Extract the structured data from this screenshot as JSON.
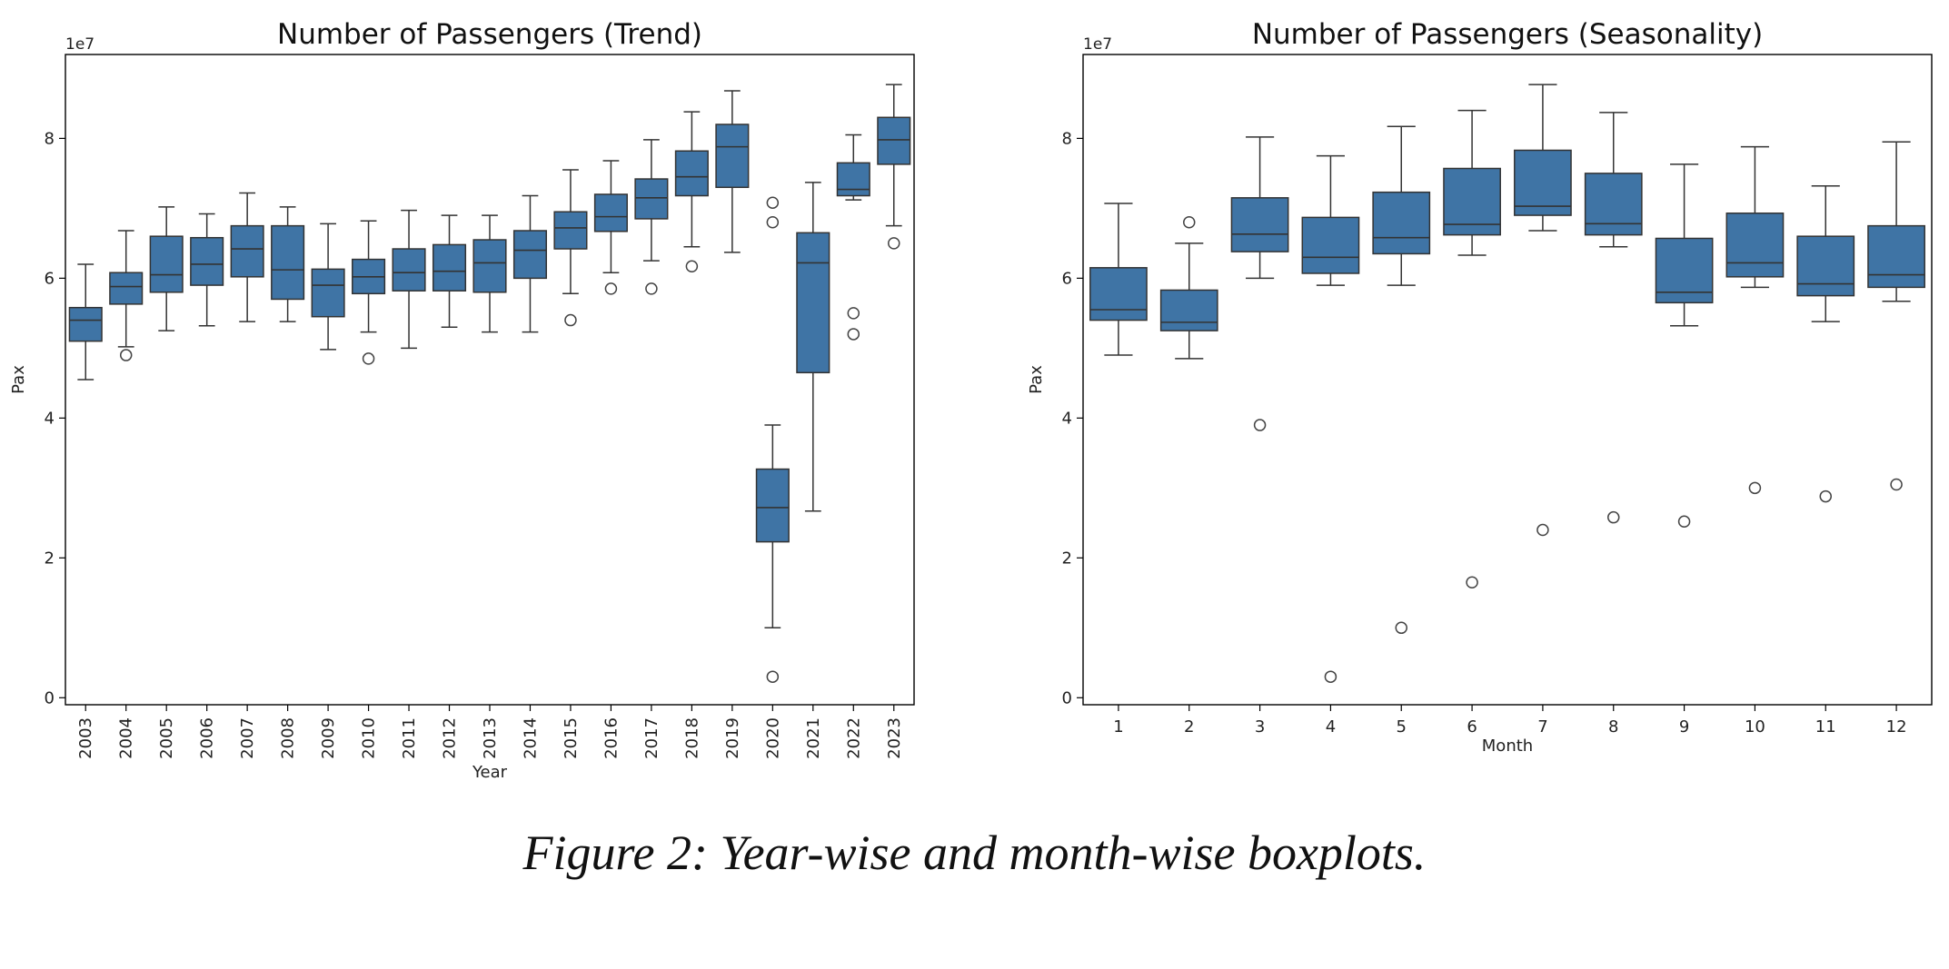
{
  "caption": "Figure 2: Year-wise and month-wise boxplots.",
  "colors": {
    "box_fill": "#3f74a5",
    "line": "#333333",
    "axes": "#000000"
  },
  "chart_data": [
    {
      "type": "box",
      "title": "Number of Passengers (Trend)",
      "xlabel": "Year",
      "ylabel": "Pax",
      "y_offset_label": "1e7",
      "ylim": [
        -0.1,
        9.2
      ],
      "yticks": [
        0,
        2,
        4,
        6,
        8
      ],
      "x_tick_rotation": "vertical",
      "grid": false,
      "categories": [
        "2003",
        "2004",
        "2005",
        "2006",
        "2007",
        "2008",
        "2009",
        "2010",
        "2011",
        "2012",
        "2013",
        "2014",
        "2015",
        "2016",
        "2017",
        "2018",
        "2019",
        "2020",
        "2021",
        "2022",
        "2023"
      ],
      "boxes": [
        {
          "whislo": 4.55,
          "q1": 5.1,
          "med": 5.4,
          "q3": 5.58,
          "whishi": 6.2,
          "fliers": []
        },
        {
          "whislo": 5.02,
          "q1": 5.63,
          "med": 5.88,
          "q3": 6.08,
          "whishi": 6.68,
          "fliers": [
            4.9
          ]
        },
        {
          "whislo": 5.25,
          "q1": 5.8,
          "med": 6.05,
          "q3": 6.6,
          "whishi": 7.02,
          "fliers": []
        },
        {
          "whislo": 5.32,
          "q1": 5.9,
          "med": 6.2,
          "q3": 6.58,
          "whishi": 6.92,
          "fliers": []
        },
        {
          "whislo": 5.38,
          "q1": 6.02,
          "med": 6.42,
          "q3": 6.75,
          "whishi": 7.22,
          "fliers": []
        },
        {
          "whislo": 5.38,
          "q1": 5.7,
          "med": 6.12,
          "q3": 6.75,
          "whishi": 7.02,
          "fliers": []
        },
        {
          "whislo": 4.98,
          "q1": 5.45,
          "med": 5.9,
          "q3": 6.13,
          "whishi": 6.78,
          "fliers": []
        },
        {
          "whislo": 5.23,
          "q1": 5.78,
          "med": 6.02,
          "q3": 6.27,
          "whishi": 6.82,
          "fliers": [
            4.85
          ]
        },
        {
          "whislo": 5.0,
          "q1": 5.82,
          "med": 6.08,
          "q3": 6.42,
          "whishi": 6.97,
          "fliers": []
        },
        {
          "whislo": 5.3,
          "q1": 5.82,
          "med": 6.1,
          "q3": 6.48,
          "whishi": 6.9,
          "fliers": []
        },
        {
          "whislo": 5.23,
          "q1": 5.8,
          "med": 6.22,
          "q3": 6.55,
          "whishi": 6.9,
          "fliers": []
        },
        {
          "whislo": 5.23,
          "q1": 6.0,
          "med": 6.4,
          "q3": 6.68,
          "whishi": 7.18,
          "fliers": []
        },
        {
          "whislo": 5.78,
          "q1": 6.42,
          "med": 6.72,
          "q3": 6.95,
          "whishi": 7.55,
          "fliers": [
            5.4
          ]
        },
        {
          "whislo": 6.08,
          "q1": 6.67,
          "med": 6.88,
          "q3": 7.2,
          "whishi": 7.68,
          "fliers": [
            5.85
          ]
        },
        {
          "whislo": 6.25,
          "q1": 6.85,
          "med": 7.15,
          "q3": 7.42,
          "whishi": 7.98,
          "fliers": [
            5.85
          ]
        },
        {
          "whislo": 6.45,
          "q1": 7.18,
          "med": 7.45,
          "q3": 7.82,
          "whishi": 8.38,
          "fliers": [
            6.17
          ]
        },
        {
          "whislo": 6.37,
          "q1": 7.3,
          "med": 7.88,
          "q3": 8.2,
          "whishi": 8.68,
          "fliers": []
        },
        {
          "whislo": 1.0,
          "q1": 2.23,
          "med": 2.72,
          "q3": 3.27,
          "whishi": 3.9,
          "fliers": [
            0.3,
            6.8,
            7.08
          ]
        },
        {
          "whislo": 2.67,
          "q1": 4.65,
          "med": 6.22,
          "q3": 6.65,
          "whishi": 7.37,
          "fliers": []
        },
        {
          "whislo": 7.12,
          "q1": 7.18,
          "med": 7.27,
          "q3": 7.65,
          "whishi": 8.05,
          "fliers": [
            5.2,
            5.5
          ]
        },
        {
          "whislo": 6.75,
          "q1": 7.63,
          "med": 7.98,
          "q3": 8.3,
          "whishi": 8.77,
          "fliers": [
            6.5
          ]
        }
      ]
    },
    {
      "type": "box",
      "title": "Number of Passengers (Seasonality)",
      "xlabel": "Month",
      "ylabel": "Pax",
      "y_offset_label": "1e7",
      "ylim": [
        -0.1,
        9.2
      ],
      "yticks": [
        0,
        2,
        4,
        6,
        8
      ],
      "grid": false,
      "categories": [
        "1",
        "2",
        "3",
        "4",
        "5",
        "6",
        "7",
        "8",
        "9",
        "10",
        "11",
        "12"
      ],
      "boxes": [
        {
          "whislo": 4.9,
          "q1": 5.4,
          "med": 5.55,
          "q3": 6.15,
          "whishi": 7.07,
          "fliers": []
        },
        {
          "whislo": 4.85,
          "q1": 5.25,
          "med": 5.37,
          "q3": 5.83,
          "whishi": 6.5,
          "fliers": [
            6.8
          ]
        },
        {
          "whislo": 6.0,
          "q1": 6.38,
          "med": 6.63,
          "q3": 7.15,
          "whishi": 8.02,
          "fliers": [
            3.9
          ]
        },
        {
          "whislo": 5.9,
          "q1": 6.07,
          "med": 6.3,
          "q3": 6.87,
          "whishi": 7.75,
          "fliers": [
            0.3
          ]
        },
        {
          "whislo": 5.9,
          "q1": 6.35,
          "med": 6.58,
          "q3": 7.23,
          "whishi": 8.17,
          "fliers": [
            1.0
          ]
        },
        {
          "whislo": 6.33,
          "q1": 6.62,
          "med": 6.77,
          "q3": 7.57,
          "whishi": 8.4,
          "fliers": [
            1.65
          ]
        },
        {
          "whislo": 6.68,
          "q1": 6.9,
          "med": 7.03,
          "q3": 7.83,
          "whishi": 8.77,
          "fliers": [
            2.4
          ]
        },
        {
          "whislo": 6.45,
          "q1": 6.62,
          "med": 6.78,
          "q3": 7.5,
          "whishi": 8.37,
          "fliers": [
            2.58
          ]
        },
        {
          "whislo": 5.32,
          "q1": 5.65,
          "med": 5.8,
          "q3": 6.57,
          "whishi": 7.63,
          "fliers": [
            2.52
          ]
        },
        {
          "whislo": 5.87,
          "q1": 6.02,
          "med": 6.22,
          "q3": 6.93,
          "whishi": 7.88,
          "fliers": [
            3.0
          ]
        },
        {
          "whislo": 5.38,
          "q1": 5.75,
          "med": 5.92,
          "q3": 6.6,
          "whishi": 7.32,
          "fliers": [
            2.88
          ]
        },
        {
          "whislo": 5.67,
          "q1": 5.87,
          "med": 6.05,
          "q3": 6.75,
          "whishi": 7.95,
          "fliers": [
            3.05
          ]
        }
      ]
    }
  ]
}
